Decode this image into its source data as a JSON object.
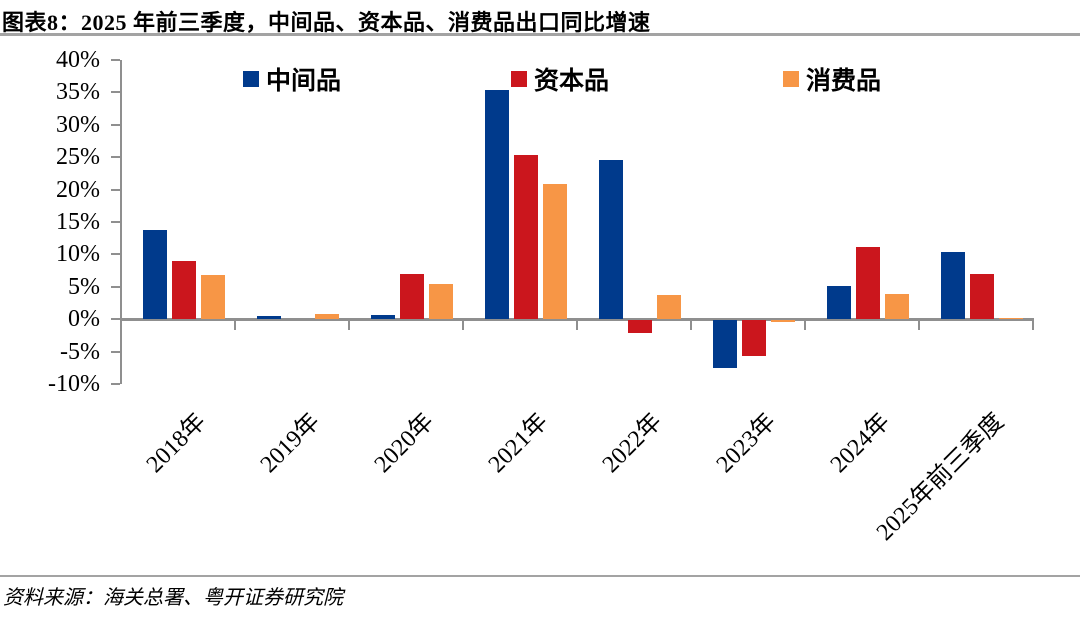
{
  "header": {
    "title": "图表8：2025 年前三季度，中间品、资本品、消费品出口同比增速"
  },
  "footer": {
    "source": "资料来源：海关总署、粤开证券研究院"
  },
  "colors": {
    "intermediate_blue": "#003A8C",
    "capital_red": "#CB161D",
    "consumer_orange": "#F79646",
    "axis_gray": "#8F8F8F",
    "rule_gray": "#A3A3A3"
  },
  "chart_data": {
    "type": "bar",
    "title": "2025 年前三季度，中间品、资本品、消费品出口同比增速",
    "categories": [
      "2018年",
      "2019年",
      "2020年",
      "2021年",
      "2022年",
      "2023年",
      "2024年",
      "2025年前三季度"
    ],
    "series": [
      {
        "name": "中间品",
        "color": "#003A8C",
        "values": [
          13.8,
          0.5,
          0.7,
          35.3,
          24.6,
          -7.4,
          5.1,
          10.3
        ]
      },
      {
        "name": "资本品",
        "color": "#CB161D",
        "values": [
          9.0,
          0.0,
          7.0,
          25.4,
          -2.0,
          -5.5,
          11.1,
          6.9
        ]
      },
      {
        "name": "消费品",
        "color": "#F79646",
        "values": [
          6.8,
          0.8,
          5.5,
          20.8,
          3.7,
          -0.3,
          3.9,
          0.2
        ]
      }
    ],
    "xlabel": "",
    "ylabel": "",
    "ylim": [
      -10,
      40
    ],
    "ytick_step": 5,
    "ytick_suffix": "%",
    "legend_position": "top",
    "grid": false
  }
}
